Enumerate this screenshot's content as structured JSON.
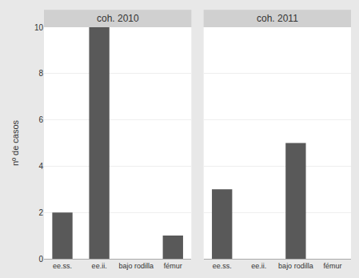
{
  "chart_data": [
    {
      "type": "bar",
      "title": "coh. 2010",
      "categories": [
        "ee.ss.",
        "ee.ii.",
        "bajo rodilla",
        "fémur"
      ],
      "values": [
        2,
        10,
        0,
        1
      ],
      "color": "#595959",
      "ylabel": "nº de casos",
      "ylim": [
        0,
        10
      ],
      "yticks": [
        0,
        2,
        4,
        6,
        8,
        10
      ],
      "grid": true
    },
    {
      "type": "bar",
      "title": "coh. 2011",
      "categories": [
        "ee.ss.",
        "ee.ii.",
        "bajo rodilla",
        "fémur"
      ],
      "values": [
        3,
        0,
        5,
        0
      ],
      "color": "#595959",
      "ylim": [
        0,
        10
      ],
      "yticks": [
        0,
        2,
        4,
        6,
        8,
        10
      ],
      "grid": true,
      "tick_labels": "x"
    }
  ]
}
